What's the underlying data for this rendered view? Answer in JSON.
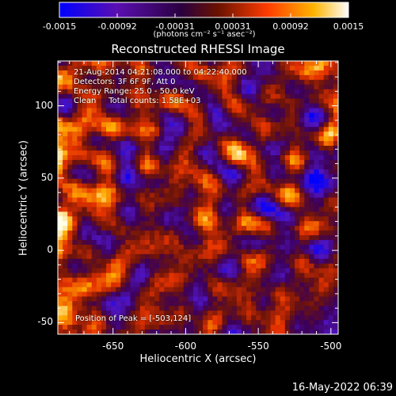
{
  "chart_data": {
    "type": "heatmap",
    "title": "Reconstructed RHESSI Image",
    "xlabel": "Heliocentric X (arcsec)",
    "ylabel": "Heliocentric Y (arcsec)",
    "xlim": [
      -688,
      -495
    ],
    "ylim": [
      -58,
      131
    ],
    "x_ticks": [
      -650,
      -600,
      -550,
      -500
    ],
    "x_tick_labels": [
      "-650",
      "-600",
      "-550",
      "-500"
    ],
    "y_ticks": [
      -50,
      0,
      50,
      100
    ],
    "y_tick_labels": [
      "-50",
      "0",
      "50",
      "100"
    ],
    "colorbar": {
      "range": [
        -0.0015,
        0.0015
      ],
      "tick_labels": [
        "-0.0015",
        "-0.00092",
        "-0.00031",
        "0.00031",
        "0.00092",
        "0.0015"
      ],
      "unit_label": "(photons cm⁻² s⁻¹ asec⁻²)",
      "colors": [
        "#0000ff",
        "#5a0fb0",
        "#3a0050",
        "#8a1a00",
        "#ff4a00",
        "#ffb000",
        "#ffffff"
      ]
    },
    "annotations": {
      "time_range": "21-Aug-2014 04:21:08.000 to 04:22:40.000",
      "detectors": "Detectors: 3F 6F 9F, Att 0",
      "energy_range": "Energy Range: 25.0 - 50.0 keV",
      "clean": "Clean     Total counts: 1.58E+03",
      "peak": "Position of Peak = [-503,124]"
    }
  },
  "footer": {
    "timestamp": "16-May-2022 06:39"
  }
}
